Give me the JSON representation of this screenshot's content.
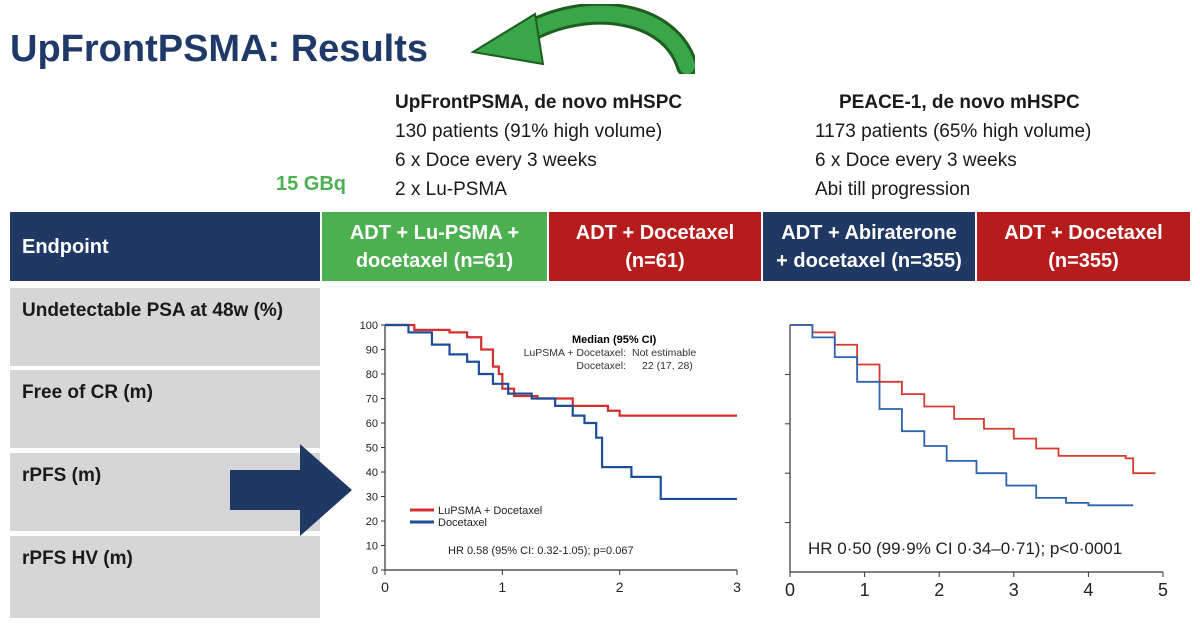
{
  "title": "UpFrontPSMA: Results",
  "upfront_box": {
    "heading": "UpFrontPSMA, de novo mHSPC",
    "lines": [
      "130 patients (91% high volume)",
      "6 x Doce every 3 weeks",
      "2 x Lu-PSMA"
    ]
  },
  "peace_box": {
    "heading": "PEACE-1, de novo mHSPC",
    "lines": [
      "1173 patients (65% high volume)",
      "6 x Doce every 3 weeks",
      "Abi till progression"
    ]
  },
  "dose_label": "15 GBq",
  "columns": [
    {
      "line1": "Endpoint",
      "line2": "",
      "color": "#1f3864"
    },
    {
      "line1": "ADT + Lu-PSMA +",
      "line2": "docetaxel (n=61)",
      "color": "#4caf50"
    },
    {
      "line1": "ADT + Docetaxel",
      "line2": "(n=61)",
      "color": "#b71c1c"
    },
    {
      "line1": "ADT + Abiraterone",
      "line2": "+ docetaxel (n=355)",
      "color": "#1f3864"
    },
    {
      "line1": "ADT + Docetaxel",
      "line2": "(n=355)",
      "color": "#b71c1c"
    }
  ],
  "endpoints": [
    "Undetectable PSA at 48w (%)",
    "Free of CR (m)",
    "rPFS (m)",
    "rPFS  HV (m)"
  ],
  "colors": {
    "title": "#1f3a68",
    "navy": "#1f3864",
    "red": "#b71c1c",
    "green": "#4caf50",
    "row_bg": "#d6d6d6",
    "arrow": "#1f3864"
  },
  "chart_data": [
    {
      "type": "line",
      "title": "",
      "xlabel": "",
      "ylabel": "",
      "xlim": [
        0,
        3
      ],
      "ylim": [
        0,
        100
      ],
      "x_ticks": [
        0,
        1,
        2,
        3
      ],
      "y_ticks": [
        0,
        10,
        20,
        30,
        40,
        50,
        60,
        70,
        80,
        90,
        100
      ],
      "step": true,
      "series": [
        {
          "name": "LuPSMA + Docetaxel",
          "color": "#d32f2f",
          "x": [
            0,
            0.25,
            0.55,
            0.7,
            0.82,
            0.92,
            0.97,
            1.0,
            1.1,
            1.3,
            1.6,
            1.9,
            2.0,
            3.0
          ],
          "y": [
            100,
            98,
            97,
            95,
            90,
            83,
            80,
            74,
            71,
            70,
            67,
            65,
            63,
            63
          ]
        },
        {
          "name": "Docetaxel",
          "color": "#1f4e99",
          "x": [
            0,
            0.2,
            0.4,
            0.55,
            0.7,
            0.8,
            0.92,
            1.05,
            1.25,
            1.45,
            1.6,
            1.7,
            1.8,
            1.85,
            2.1,
            2.35,
            3.0
          ],
          "y": [
            100,
            97,
            92,
            88,
            85,
            80,
            76,
            72,
            70,
            67,
            63,
            60,
            54,
            42,
            38,
            29,
            29
          ]
        }
      ],
      "annotations": {
        "median_header": "Median (95% CI)",
        "median_rows": [
          [
            "LuPSMA + Docetaxel:",
            "Not estimable"
          ],
          [
            "Docetaxel:",
            "22 (17, 28)"
          ]
        ],
        "hr": "HR 0.58 (95% CI: 0.32-1.05); p=0.067"
      },
      "legend": "bottom-left"
    },
    {
      "type": "line",
      "title": "",
      "xlabel": "",
      "ylabel": "",
      "xlim": [
        0,
        5
      ],
      "ylim": [
        0,
        100
      ],
      "x_ticks": [
        0,
        1,
        2,
        3,
        4,
        5
      ],
      "step": true,
      "series": [
        {
          "name": "",
          "color": "#d63b2f",
          "x": [
            0,
            0.3,
            0.6,
            0.9,
            1.2,
            1.5,
            1.8,
            2.2,
            2.6,
            3.0,
            3.3,
            3.6,
            4.0,
            4.5,
            4.6,
            4.9
          ],
          "y": [
            100,
            97,
            92,
            84,
            77,
            72,
            67,
            62,
            58,
            54,
            50,
            47,
            47,
            46,
            40,
            40
          ]
        },
        {
          "name": "",
          "color": "#2e64ad",
          "x": [
            0,
            0.3,
            0.6,
            0.9,
            1.2,
            1.5,
            1.8,
            2.1,
            2.5,
            2.9,
            3.3,
            3.7,
            4.0,
            4.6
          ],
          "y": [
            100,
            95,
            87,
            77,
            66,
            57,
            51,
            45,
            40,
            35,
            30,
            28,
            27,
            27
          ]
        }
      ],
      "annotations": {
        "hr": "HR 0·50 (99·9% CI 0·34–0·71); p<0·0001"
      }
    }
  ]
}
